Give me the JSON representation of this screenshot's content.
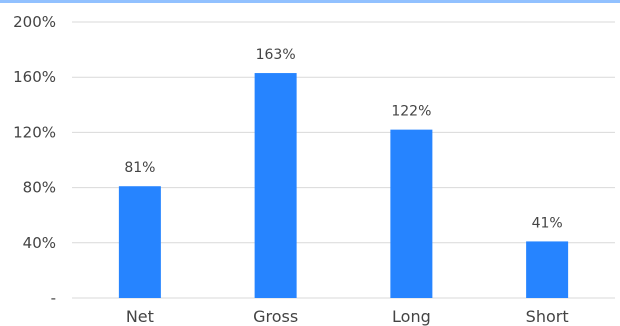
{
  "chart_data": {
    "type": "bar",
    "categories": [
      "Net",
      "Gross",
      "Long",
      "Short"
    ],
    "values": [
      81,
      163,
      122,
      41
    ],
    "data_labels": [
      "81%",
      "163%",
      "122%",
      "41%"
    ],
    "y_ticks": [
      {
        "value": 0,
        "label": "-"
      },
      {
        "value": 40,
        "label": "40%"
      },
      {
        "value": 80,
        "label": "80%"
      },
      {
        "value": 120,
        "label": "120%"
      },
      {
        "value": 160,
        "label": "160%"
      },
      {
        "value": 200,
        "label": "200%"
      }
    ],
    "ylim": [
      0,
      200
    ],
    "grid": true,
    "bar_color": "#2684FF",
    "grid_color": "#D9D9D9",
    "text_color": "#444444",
    "legend": "none"
  }
}
